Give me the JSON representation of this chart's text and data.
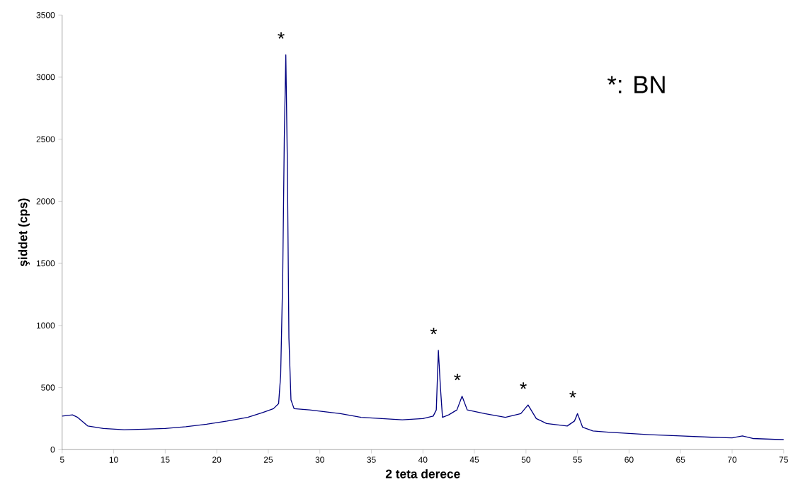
{
  "chart_data": {
    "type": "line",
    "xlabel": "2 teta derece",
    "ylabel": "şiddet (cps)",
    "x": [
      5,
      6,
      6.5,
      7.5,
      9,
      11,
      13,
      15,
      17,
      19,
      21,
      23,
      24.5,
      25.5,
      26,
      26.2,
      26.4,
      26.55,
      26.7,
      26.85,
      27,
      27.2,
      27.5,
      29,
      30,
      32,
      34,
      36,
      38,
      40,
      41,
      41.3,
      41.5,
      41.7,
      41.9,
      42.5,
      43.3,
      43.8,
      44.3,
      46,
      48,
      49.5,
      50.2,
      51,
      52,
      54,
      54.7,
      55,
      55.5,
      56.5,
      58,
      60,
      62,
      65,
      68,
      70,
      71,
      72,
      75
    ],
    "series": [
      {
        "color": "#000080",
        "values": [
          270,
          280,
          260,
          190,
          170,
          160,
          165,
          170,
          185,
          205,
          230,
          260,
          300,
          330,
          370,
          600,
          1400,
          2500,
          3180,
          2300,
          900,
          400,
          330,
          320,
          310,
          290,
          260,
          250,
          240,
          250,
          270,
          320,
          800,
          500,
          260,
          280,
          320,
          430,
          320,
          290,
          260,
          290,
          360,
          250,
          210,
          190,
          230,
          290,
          180,
          150,
          140,
          130,
          120,
          110,
          100,
          95,
          110,
          90,
          80
        ]
      }
    ],
    "xlim": [
      5,
      75
    ],
    "xticks": [
      5,
      10,
      15,
      20,
      25,
      30,
      35,
      40,
      45,
      50,
      55,
      60,
      65,
      70,
      75
    ],
    "ylim": [
      0,
      3500
    ],
    "yticks": [
      0,
      500,
      1000,
      1500,
      2000,
      2500,
      3000,
      3500
    ],
    "grid": false,
    "marker": "none",
    "line_style": "solid",
    "annotations": [
      {
        "text": "*",
        "x": 26.7,
        "y": 3180
      },
      {
        "text": "*",
        "x": 41.5,
        "y": 800
      },
      {
        "text": "*",
        "x": 43.8,
        "y": 430
      },
      {
        "text": "*",
        "x": 50.2,
        "y": 360
      },
      {
        "text": "*",
        "x": 55,
        "y": 290
      },
      "*: BN"
    ]
  }
}
